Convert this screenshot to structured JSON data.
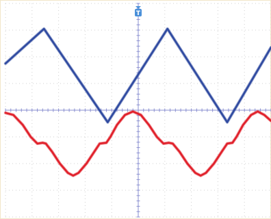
{
  "chart_data": {
    "type": "line",
    "title": "",
    "xlabel": "",
    "ylabel": "",
    "grid": true,
    "grid_divisions": {
      "x": 10,
      "y": 8
    },
    "xlim": [
      0,
      10
    ],
    "ylim": [
      -4,
      4
    ],
    "trigger_marker": {
      "label": "T",
      "x_div": 5
    },
    "series": [
      {
        "color": "#2f4aa0",
        "shape": "triangle",
        "points": [
          [
            0.0,
            1.75
          ],
          [
            1.45,
            3.05
          ],
          [
            3.85,
            -0.45
          ],
          [
            6.1,
            3.05
          ],
          [
            8.35,
            -0.45
          ],
          [
            10.0,
            2.35
          ]
        ]
      },
      {
        "color": "#e0202a",
        "shape": "clipped-sine",
        "points": [
          [
            0.0,
            -0.1
          ],
          [
            0.3,
            -0.18
          ],
          [
            0.65,
            -0.55
          ],
          [
            0.95,
            -1.0
          ],
          [
            1.2,
            -1.25
          ],
          [
            1.4,
            -1.22
          ],
          [
            1.52,
            -1.25
          ],
          [
            1.75,
            -1.55
          ],
          [
            2.05,
            -2.0
          ],
          [
            2.35,
            -2.35
          ],
          [
            2.55,
            -2.45
          ],
          [
            2.75,
            -2.35
          ],
          [
            3.05,
            -2.0
          ],
          [
            3.35,
            -1.55
          ],
          [
            3.55,
            -1.25
          ],
          [
            3.8,
            -1.22
          ],
          [
            3.95,
            -1.0
          ],
          [
            4.2,
            -0.55
          ],
          [
            4.5,
            -0.18
          ],
          [
            4.8,
            -0.05
          ],
          [
            5.1,
            -0.18
          ],
          [
            5.4,
            -0.55
          ],
          [
            5.7,
            -1.0
          ],
          [
            5.95,
            -1.25
          ],
          [
            6.15,
            -1.22
          ],
          [
            6.3,
            -1.25
          ],
          [
            6.55,
            -1.55
          ],
          [
            6.85,
            -2.0
          ],
          [
            7.15,
            -2.35
          ],
          [
            7.35,
            -2.45
          ],
          [
            7.55,
            -2.35
          ],
          [
            7.85,
            -2.0
          ],
          [
            8.15,
            -1.55
          ],
          [
            8.35,
            -1.25
          ],
          [
            8.55,
            -1.22
          ],
          [
            8.7,
            -1.0
          ],
          [
            8.95,
            -0.55
          ],
          [
            9.25,
            -0.18
          ],
          [
            9.5,
            -0.05
          ],
          [
            9.75,
            -0.18
          ],
          [
            10.0,
            -0.4
          ]
        ]
      }
    ]
  },
  "colors": {
    "background": "#ffffff",
    "grid": "#cfcfcf",
    "axis": "#8a8fd0",
    "frame": "#f2e6c8",
    "trigger": "#4a90d9"
  }
}
